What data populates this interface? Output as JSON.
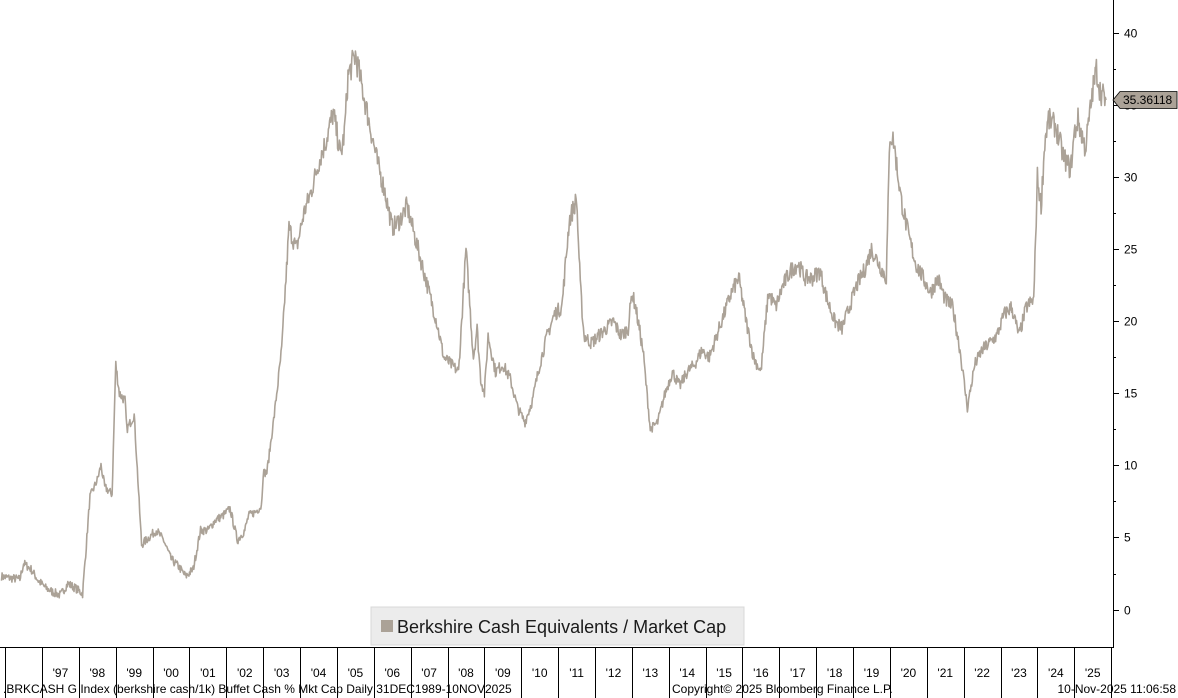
{
  "chart_data": {
    "type": "line",
    "title": "",
    "xlabel": "",
    "ylabel": "",
    "ylim": [
      -2.6,
      42.3
    ],
    "xlim": [
      1995.86,
      2026.05
    ],
    "y_ticks": [
      0,
      5,
      10,
      15,
      20,
      25,
      30,
      35,
      40
    ],
    "x_tick_labels": [
      "'97",
      "'98",
      "'99",
      "'00",
      "'01",
      "'02",
      "'03",
      "'04",
      "'05",
      "'06",
      "'07",
      "'08",
      "'09",
      "'10",
      "'11",
      "'12",
      "'13",
      "'14",
      "'15",
      "'16",
      "'17",
      "'18",
      "'19",
      "'20",
      "'21",
      "'22",
      "'23",
      "'24",
      "'25"
    ],
    "x_tick_positions": [
      1997,
      1998,
      1999,
      2000,
      2001,
      2002,
      2003,
      2004,
      2005,
      2006,
      2007,
      2008,
      2009,
      2010,
      2011,
      2012,
      2013,
      2014,
      2015,
      2016,
      2017,
      2018,
      2019,
      2020,
      2021,
      2022,
      2023,
      2024,
      2025
    ],
    "grid": false,
    "legend_position": "bottom-center",
    "last_value_label": "35.36118",
    "series": [
      {
        "name": "Berkshire Cash Equivalents / Market Cap",
        "color": "#aba297",
        "x": [
          1995.9,
          1996.1,
          1996.4,
          1996.5,
          1996.7,
          1996.9,
          1997.1,
          1997.3,
          1997.5,
          1997.7,
          1997.9,
          1998.1,
          1998.3,
          1998.5,
          1998.6,
          1998.7,
          1998.9,
          1999.0,
          1999.1,
          1999.25,
          1999.3,
          1999.5,
          1999.7,
          1999.9,
          2000.1,
          2000.3,
          2000.5,
          2000.7,
          2000.9,
          2001.1,
          2001.3,
          2001.5,
          2001.7,
          2001.9,
          2002.1,
          2002.3,
          2002.5,
          2002.6,
          2002.8,
          2002.95,
          2003.0,
          2003.1,
          2003.3,
          2003.5,
          2003.7,
          2003.9,
          2004.1,
          2004.3,
          2004.5,
          2004.7,
          2004.9,
          2005.1,
          2005.2,
          2005.3,
          2005.5,
          2005.7,
          2005.9,
          2006.1,
          2006.3,
          2006.5,
          2006.7,
          2006.9,
          2007.1,
          2007.3,
          2007.5,
          2007.7,
          2007.9,
          2008.1,
          2008.3,
          2008.5,
          2008.7,
          2008.8,
          2008.9,
          2009.0,
          2009.1,
          2009.3,
          2009.5,
          2009.7,
          2009.9,
          2010.1,
          2010.3,
          2010.5,
          2010.7,
          2010.9,
          2011.1,
          2011.3,
          2011.5,
          2011.6,
          2011.7,
          2011.9,
          2012.1,
          2012.3,
          2012.5,
          2012.7,
          2012.9,
          2013.0,
          2013.1,
          2013.2,
          2013.3,
          2013.5,
          2013.7,
          2013.9,
          2014.1,
          2014.3,
          2014.5,
          2014.7,
          2014.9,
          2015.1,
          2015.3,
          2015.5,
          2015.7,
          2015.9,
          2016.1,
          2016.3,
          2016.5,
          2016.7,
          2016.9,
          2017.1,
          2017.3,
          2017.5,
          2017.7,
          2017.9,
          2018.1,
          2018.3,
          2018.5,
          2018.7,
          2018.9,
          2019.1,
          2019.3,
          2019.5,
          2019.7,
          2019.9,
          2020.0,
          2020.1,
          2020.3,
          2020.5,
          2020.7,
          2020.9,
          2021.1,
          2021.3,
          2021.5,
          2021.7,
          2021.9,
          2022.1,
          2022.2,
          2022.3,
          2022.5,
          2022.7,
          2022.9,
          2023.1,
          2023.3,
          2023.5,
          2023.7,
          2023.9,
          2024.0,
          2024.1,
          2024.2,
          2024.3,
          2024.5,
          2024.7,
          2024.9,
          2025.0,
          2025.1,
          2025.3,
          2025.5,
          2025.6,
          2025.7,
          2025.86
        ],
        "values": [
          2.3,
          2.2,
          2.1,
          3.2,
          2.8,
          2.0,
          1.5,
          1.2,
          1.0,
          1.8,
          1.5,
          1.1,
          7.8,
          9.0,
          10.0,
          8.5,
          8.0,
          17.0,
          15.0,
          14.5,
          12.5,
          13.5,
          4.5,
          5.0,
          5.5,
          4.8,
          3.5,
          3.0,
          2.3,
          2.8,
          5.5,
          5.5,
          6.2,
          6.5,
          7.0,
          4.8,
          5.5,
          6.5,
          6.8,
          7.2,
          9.5,
          9.5,
          13.5,
          18.0,
          26.5,
          25.0,
          27.5,
          29.0,
          31.0,
          32.5,
          34.5,
          31.5,
          33.0,
          37.0,
          38.5,
          36.0,
          33.5,
          31.0,
          29.0,
          26.5,
          27.0,
          28.0,
          26.0,
          24.0,
          22.0,
          20.0,
          17.5,
          17.0,
          16.5,
          25.0,
          17.5,
          19.5,
          16.0,
          15.0,
          19.0,
          16.5,
          17.0,
          16.0,
          14.0,
          13.0,
          14.5,
          17.0,
          19.0,
          20.5,
          21.0,
          27.0,
          28.5,
          22.5,
          19.0,
          18.5,
          19.0,
          19.5,
          20.0,
          19.0,
          19.5,
          22.0,
          21.0,
          19.5,
          18.0,
          12.5,
          13.0,
          15.0,
          16.5,
          15.5,
          16.5,
          17.0,
          18.0,
          17.5,
          19.0,
          20.5,
          22.0,
          23.0,
          20.0,
          17.5,
          16.5,
          22.0,
          21.0,
          22.5,
          23.5,
          24.0,
          23.0,
          23.0,
          23.5,
          21.5,
          20.0,
          19.5,
          21.0,
          22.5,
          23.5,
          25.0,
          24.0,
          23.0,
          33.0,
          32.5,
          28.5,
          26.0,
          24.0,
          23.0,
          22.0,
          23.0,
          21.5,
          21.0,
          18.0,
          14.0,
          15.5,
          17.0,
          18.0,
          18.5,
          19.0,
          20.5,
          21.0,
          19.0,
          21.0,
          21.5,
          30.0,
          28.0,
          32.5,
          34.0,
          33.5,
          31.5,
          30.5,
          33.0,
          34.0,
          32.0,
          36.0,
          37.5,
          36.0,
          35.36
        ]
      }
    ]
  },
  "footer": {
    "left": ".BRKCASH G Index (berkshire cash/1k) Buffet Cash % Mkt Cap Daily 31DEC1989-10NOV2025",
    "center": "Copyright© 2025 Bloomberg Finance L.P.",
    "right": "10-Nov-2025 11:06:58"
  }
}
